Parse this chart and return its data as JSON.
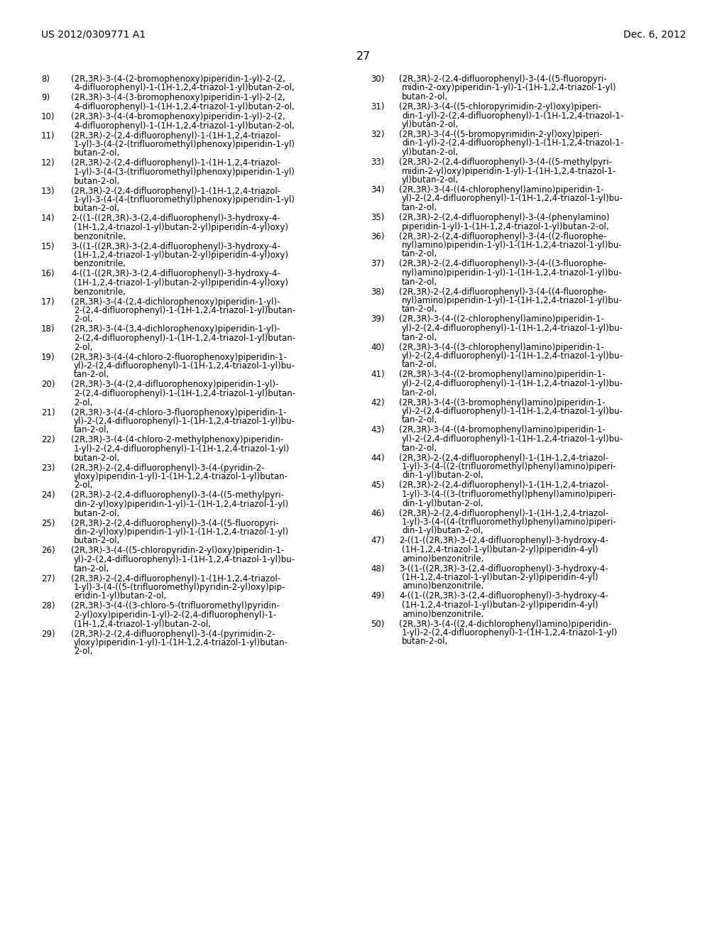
{
  "header_left": "US 2012/0309771 A1",
  "header_right": "Dec. 6, 2012",
  "page_number": "27",
  "background_color": "#ffffff",
  "text_color": "#000000",
  "left_column": [
    [
      "8)",
      "(2R,3R)-3-(4-(2-bromophenoxy)piperidin-1-yl)-2-(2,",
      "4-difluorophenyl)-1-(1H-1,2,4-triazol-1-yl)butan-2-ol,"
    ],
    [
      "9)",
      "(2R,3R)-3-(4-(3-bromophenoxy)piperidin-1-yl)-2-(2,",
      "4-difluorophenyl)-1-(1H-1,2,4-triazol-1-yl)butan-2-ol,"
    ],
    [
      "10)",
      "(2R,3R)-3-(4-(4-bromophenoxy)piperidin-1-yl)-2-(2,",
      "4-difluorophenyl)-1-(1H-1,2,4-triazol-1-yl)butan-2-ol,"
    ],
    [
      "11)",
      "(2R,3R)-2-(2,4-difluorophenyl)-1-(1H-1,2,4-triazol-",
      "1-yl)-3-(4-(2-(trifluoromethyl)phenoxy)piperidin-1-yl)",
      "butan-2-ol,"
    ],
    [
      "12)",
      "(2R,3R)-2-(2,4-difluorophenyl)-1-(1H-1,2,4-triazol-",
      "1-yl)-3-(4-(3-(trifluoromethyl)phenoxy)piperidin-1-yl)",
      "butan-2-ol,"
    ],
    [
      "13)",
      "(2R,3R)-2-(2,4-difluorophenyl)-1-(1H-1,2,4-triazol-",
      "1-yl)-3-(4-(4-(trifluoromethyl)phenoxy)piperidin-1-yl)",
      "butan-2-ol,"
    ],
    [
      "14)",
      "2-((1-((2R,3R)-3-(2,4-difluorophenyl)-3-hydroxy-4-",
      "(1H-1,2,4-triazol-1-yl)butan-2-yl)piperidin-4-yl)oxy)",
      "benzonitrile,"
    ],
    [
      "15)",
      "3-((1-((2R,3R)-3-(2,4-difluorophenyl)-3-hydroxy-4-",
      "(1H-1,2,4-triazol-1-yl)butan-2-yl)piperidin-4-yl)oxy)",
      "benzonitrile,"
    ],
    [
      "16)",
      "4-((1-((2R,3R)-3-(2,4-difluorophenyl)-3-hydroxy-4-",
      "(1H-1,2,4-triazol-1-yl)butan-2-yl)piperidin-4-yl)oxy)",
      "benzonitrile,"
    ],
    [
      "17)",
      "(2R,3R)-3-(4-(2,4-dichlorophenoxy)piperidin-1-yl)-",
      "2-(2,4-difluorophenyl)-1-(1H-1,2,4-triazol-1-yl)butan-",
      "2-ol,"
    ],
    [
      "18)",
      "(2R,3R)-3-(4-(3,4-dichlorophenoxy)piperidin-1-yl)-",
      "2-(2,4-difluorophenyl)-1-(1H-1,2,4-triazol-1-yl)butan-",
      "2-ol,"
    ],
    [
      "19)",
      "(2R,3R)-3-(4-(4-chloro-2-fluorophenoxy)piperidin-1-",
      "yl)-2-(2,4-difluorophenyl)-1-(1H-1,2,4-triazol-1-yl)bu-",
      "tan-2-ol,"
    ],
    [
      "20)",
      "(2R,3R)-3-(4-(2,4-difluorophenoxy)piperidin-1-yl)-",
      "2-(2,4-difluorophenyl)-1-(1H-1,2,4-triazol-1-yl)butan-",
      "2-ol,"
    ],
    [
      "21)",
      "(2R,3R)-3-(4-(4-chloro-3-fluorophenoxy)piperidin-1-",
      "yl)-2-(2,4-difluorophenyl)-1-(1H-1,2,4-triazol-1-yl)bu-",
      "tan-2-ol,"
    ],
    [
      "22)",
      "(2R,3R)-3-(4-(4-chloro-2-methylphenoxy)piperidin-",
      "1-yl)-2-(2,4-difluorophenyl)-1-(1H-1,2,4-triazol-1-yl)",
      "butan-2-ol,"
    ],
    [
      "23)",
      "(2R,3R)-2-(2,4-difluorophenyl)-3-(4-(pyridin-2-",
      "yloxy)piperidin-1-yl)-1-(1H-1,2,4-triazol-1-yl)butan-",
      "2-ol,"
    ],
    [
      "24)",
      "(2R,3R)-2-(2,4-difluorophenyl)-3-(4-((5-methylpyri-",
      "din-2-yl)oxy)piperidin-1-yl)-1-(1H-1,2,4-triazol-1-yl)",
      "butan-2-ol,"
    ],
    [
      "25)",
      "(2R,3R)-2-(2,4-difluorophenyl)-3-(4-((5-fluoropyri-",
      "din-2-yl)oxy)piperidin-1-yl)-1-(1H-1,2,4-triazol-1-yl)",
      "butan-2-ol,"
    ],
    [
      "26)",
      "(2R,3R)-3-(4-((5-chloropyridin-2-yl)oxy)piperidin-1-",
      "yl)-2-(2,4-difluorophenyl)-1-(1H-1,2,4-triazol-1-yl)bu-",
      "tan-2-ol,"
    ],
    [
      "27)",
      "(2R,3R)-2-(2,4-difluorophenyl)-1-(1H-1,2,4-triazol-",
      "1-yl)-3-(4-((5-(trifluoromethyl)pyridin-2-yl)oxy)pip-",
      "eridin-1-yl)butan-2-ol,"
    ],
    [
      "28)",
      "(2R,3R)-3-(4-((3-chloro-5-(trifluoromethyl)pyridin-",
      "2-yl)oxy)piperidin-1-yl)-2-(2,4-difluorophenyl)-1-",
      "(1H-1,2,4-triazol-1-yl)butan-2-ol,"
    ],
    [
      "29)",
      "(2R,3R)-2-(2,4-difluorophenyl)-3-(4-(pyrimidin-2-",
      "yloxy)piperidin-1-yl)-1-(1H-1,2,4-triazol-1-yl)butan-",
      "2-ol,"
    ]
  ],
  "right_column": [
    [
      "30)",
      "(2R,3R)-2-(2,4-difluorophenyl)-3-(4-((5-fluoropyri-",
      "midin-2-oxy)piperidin-1-yl)-1-(1H-1,2,4-triazol-1-yl)",
      "butan-2-ol,"
    ],
    [
      "31)",
      "(2R,3R)-3-(4-((5-chloropyrimidin-2-yl)oxy)piperi-",
      "din-1-yl)-2-(2,4-difluorophenyl)-1-(1H-1,2,4-triazol-1-",
      "yl)butan-2-ol,"
    ],
    [
      "32)",
      "(2R,3R)-3-(4-((5-bromopyrimidin-2-yl)oxy)piperi-",
      "din-1-yl)-2-(2,4-difluorophenyl)-1-(1H-1,2,4-triazol-1-",
      "yl)butan-2-ol,"
    ],
    [
      "33)",
      "(2R,3R)-2-(2,4-difluorophenyl)-3-(4-((5-methylpyri-",
      "midin-2-yl)oxy)piperidin-1-yl)-1-(1H-1,2,4-triazol-1-",
      "yl)butan-2-ol,"
    ],
    [
      "34)",
      "(2R,3R)-3-(4-((4-chlorophenyl)amino)piperidin-1-",
      "yl)-2-(2,4-difluorophenyl)-1-(1H-1,2,4-triazol-1-yl)bu-",
      "tan-2-ol,"
    ],
    [
      "35)",
      "(2R,3R)-2-(2,4-difluorophenyl)-3-(4-(phenylamino)",
      "piperidin-1-yl)-1-(1H-1,2,4-triazol-1-yl)butan-2-ol,"
    ],
    [
      "36)",
      "(2R,3R)-2-(2,4-difluorophenyl)-3-(4-((2-fluorophe-",
      "nyl)amino)piperidin-1-yl)-1-(1H-1,2,4-triazol-1-yl)bu-",
      "tan-2-ol,"
    ],
    [
      "37)",
      "(2R,3R)-2-(2,4-difluorophenyl)-3-(4-((3-fluorophe-",
      "nyl)amino)piperidin-1-yl)-1-(1H-1,2,4-triazol-1-yl)bu-",
      "tan-2-ol,"
    ],
    [
      "38)",
      "(2R,3R)-2-(2,4-difluorophenyl)-3-(4-((4-fluorophe-",
      "nyl)amino)piperidin-1-yl)-1-(1H-1,2,4-triazol-1-yl)bu-",
      "tan-2-ol,"
    ],
    [
      "39)",
      "(2R,3R)-3-(4-((2-chlorophenyl)amino)piperidin-1-",
      "yl)-2-(2,4-difluorophenyl)-1-(1H-1,2,4-triazol-1-yl)bu-",
      "tan-2-ol,"
    ],
    [
      "40)",
      "(2R,3R)-3-(4-((3-chlorophenyl)amino)piperidin-1-",
      "yl)-2-(2,4-difluorophenyl)-1-(1H-1,2,4-triazol-1-yl)bu-",
      "tan-2-ol,"
    ],
    [
      "41)",
      "(2R,3R)-3-(4-((2-bromophenyl)amino)piperidin-1-",
      "yl)-2-(2,4-difluorophenyl)-1-(1H-1,2,4-triazol-1-yl)bu-",
      "tan-2-ol,"
    ],
    [
      "42)",
      "(2R,3R)-3-(4-((3-bromophenyl)amino)piperidin-1-",
      "yl)-2-(2,4-difluorophenyl)-1-(1H-1,2,4-triazol-1-yl)bu-",
      "tan-2-ol,"
    ],
    [
      "43)",
      "(2R,3R)-3-(4-((4-bromophenyl)amino)piperidin-1-",
      "yl)-2-(2,4-difluorophenyl)-1-(1H-1,2,4-triazol-1-yl)bu-",
      "tan-2-ol,"
    ],
    [
      "44)",
      "(2R,3R)-2-(2,4-difluorophenyl)-1-(1H-1,2,4-triazol-",
      "1-yl)-3-(4-((2-(trifluoromethyl)phenyl)amino)piperi-",
      "din-1-yl)butan-2-ol,"
    ],
    [
      "45)",
      "(2R,3R)-2-(2,4-difluorophenyl)-1-(1H-1,2,4-triazol-",
      "1-yl)-3-(4-((3-(trifluoromethyl)phenyl)amino)piperi-",
      "din-1-yl)butan-2-ol,"
    ],
    [
      "46)",
      "(2R,3R)-2-(2,4-difluorophenyl)-1-(1H-1,2,4-triazol-",
      "1-yl)-3-(4-((4-(trifluoromethyl)phenyl)amino)piperi-",
      "din-1-yl)butan-2-ol,"
    ],
    [
      "47)",
      "2-((1-((2R,3R)-3-(2,4-difluorophenyl)-3-hydroxy-4-",
      "(1H-1,2,4-triazol-1-yl)butan-2-yl)piperidin-4-yl)",
      "amino)benzonitrile,"
    ],
    [
      "48)",
      "3-((1-((2R,3R)-3-(2,4-difluorophenyl)-3-hydroxy-4-",
      "(1H-1,2,4-triazol-1-yl)butan-2-yl)piperidin-4-yl)",
      "amino)benzonitrile,"
    ],
    [
      "49)",
      "4-((1-((2R,3R)-3-(2,4-difluorophenyl)-3-hydroxy-4-",
      "(1H-1,2,4-triazol-1-yl)butan-2-yl)piperidin-4-yl)",
      "amino)benzonitrile,"
    ],
    [
      "50)",
      "(2R,3R)-3-(4-((2,4-dichlorophenyl)amino)piperidin-",
      "1-yl)-2-(2,4-difluorophenyl)-1-(1H-1,2,4-triazol-1-yl)",
      "butan-2-ol,"
    ]
  ],
  "font_size": 8.5,
  "header_font_size": 10.0,
  "page_num_font_size": 11.5
}
